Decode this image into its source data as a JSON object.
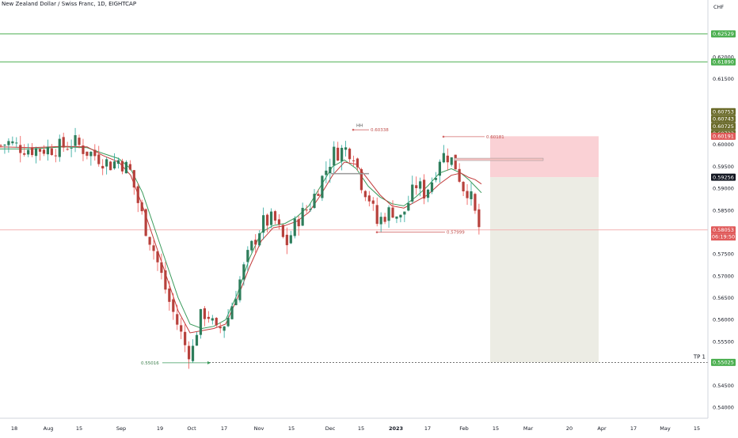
{
  "header": {
    "title": "New Zealand Dollar / Swiss Franc, 1D, EIGHTCAP"
  },
  "colors": {
    "up": "#26a69a",
    "down": "#ef5350",
    "body_up": "#2e7d5b",
    "body_down": "#b7413c",
    "ma_fast": "#c23b3b",
    "ma_slow": "#3a9a5b",
    "hline_green": "#4caf50",
    "stop_zone": "#f9c6cb",
    "target_zone": "#ecece4",
    "level_olive": "#6b6b2a",
    "last_price": "#d84a4a"
  },
  "chart_data": {
    "type": "candlestick",
    "title": "New Zealand Dollar / Swiss Franc, 1D, EIGHTCAP",
    "currency_label": "CHF",
    "ylim": [
      0.5375,
      0.6305
    ],
    "y_ticks": [
      "0.62000",
      "0.61500",
      "0.60500",
      "0.60000",
      "0.59500",
      "0.59000",
      "0.58500",
      "0.57500",
      "0.57000",
      "0.56500",
      "0.56000",
      "0.55500",
      "0.54500",
      "0.54000"
    ],
    "x_tick_labels": [
      "18",
      "Aug",
      "15",
      "Sep",
      "19",
      "Oct",
      "17",
      "Nov",
      "15",
      "Dec",
      "15",
      "2023",
      "17",
      "Feb",
      "15",
      "Mar",
      "20",
      "Apr",
      "17",
      "May",
      "15"
    ],
    "price_tags": [
      {
        "label": "0.62529",
        "value": 0.62529,
        "style": "green"
      },
      {
        "label": "0.61890",
        "value": 0.6189,
        "style": "green"
      },
      {
        "label": "0.60753",
        "value": 0.60753,
        "style": "olive"
      },
      {
        "label": "0.60743",
        "value": 0.60743,
        "style": "olive"
      },
      {
        "label": "0.60725",
        "value": 0.60725,
        "style": "olive"
      },
      {
        "label": "0.60723",
        "value": 0.60723,
        "style": "olive"
      },
      {
        "label": "0.60191",
        "value": 0.60191,
        "style": "red"
      },
      {
        "label": "0.59256",
        "value": 0.59256,
        "style": "dark"
      },
      {
        "label": "0.58053",
        "value": 0.58053,
        "style": "red"
      },
      {
        "label": "0.55025",
        "value": 0.55025,
        "style": "green"
      }
    ],
    "countdown": "06:19:50",
    "horizontal_lines": [
      0.62529,
      0.6189
    ],
    "annotations": [
      {
        "text": "HH",
        "value": 0.6044
      },
      {
        "text": "0.60338",
        "value": 0.60338
      },
      {
        "text": "0.60181",
        "value": 0.60181
      },
      {
        "text": "0.57999",
        "value": 0.57999
      },
      {
        "text": "0.55016",
        "value": 0.55016
      },
      {
        "text": "TP 1",
        "value": 0.55025
      }
    ],
    "position": {
      "entry": 0.59256,
      "stop": 0.60191,
      "target": 0.55025
    },
    "anchors": [
      [
        0,
        0.5998
      ],
      [
        10,
        0.6005
      ],
      [
        24,
        0.5995
      ],
      [
        39,
        0.599
      ],
      [
        59,
        0.599
      ],
      [
        79,
        0.5995
      ],
      [
        94,
        0.6005
      ],
      [
        109,
        0.5985
      ],
      [
        124,
        0.5972
      ],
      [
        139,
        0.5955
      ],
      [
        150,
        0.5965
      ],
      [
        164,
        0.594
      ],
      [
        174,
        0.587
      ],
      [
        184,
        0.581
      ],
      [
        194,
        0.576
      ],
      [
        204,
        0.57
      ],
      [
        214,
        0.564
      ],
      [
        224,
        0.559
      ],
      [
        234,
        0.554
      ],
      [
        242,
        0.552
      ],
      [
        251,
        0.56
      ],
      [
        261,
        0.562
      ],
      [
        273,
        0.557
      ],
      [
        287,
        0.56
      ],
      [
        301,
        0.568
      ],
      [
        316,
        0.576
      ],
      [
        331,
        0.582
      ],
      [
        346,
        0.583
      ],
      [
        361,
        0.577
      ],
      [
        376,
        0.583
      ],
      [
        391,
        0.586
      ],
      [
        406,
        0.592
      ],
      [
        421,
        0.598
      ],
      [
        436,
        0.599
      ],
      [
        446,
        0.5985
      ],
      [
        456,
        0.5915
      ],
      [
        466,
        0.588
      ],
      [
        476,
        0.582
      ],
      [
        486,
        0.584
      ],
      [
        496,
        0.585
      ],
      [
        506,
        0.583
      ],
      [
        516,
        0.587
      ],
      [
        526,
        0.591
      ],
      [
        536,
        0.589
      ],
      [
        546,
        0.592
      ],
      [
        556,
        0.5975
      ],
      [
        566,
        0.5975
      ],
      [
        576,
        0.595
      ],
      [
        584,
        0.5905
      ],
      [
        592,
        0.5895
      ],
      [
        600,
        0.584
      ],
      [
        606,
        0.5805
      ]
    ],
    "ma_fast": [
      [
        0,
        0.5995
      ],
      [
        40,
        0.5993
      ],
      [
        80,
        0.5996
      ],
      [
        110,
        0.5995
      ],
      [
        130,
        0.5975
      ],
      [
        150,
        0.596
      ],
      [
        165,
        0.593
      ],
      [
        180,
        0.586
      ],
      [
        195,
        0.578
      ],
      [
        210,
        0.57
      ],
      [
        225,
        0.562
      ],
      [
        240,
        0.557
      ],
      [
        255,
        0.5575
      ],
      [
        270,
        0.558
      ],
      [
        285,
        0.559
      ],
      [
        300,
        0.565
      ],
      [
        315,
        0.572
      ],
      [
        330,
        0.578
      ],
      [
        345,
        0.581
      ],
      [
        360,
        0.5815
      ],
      [
        375,
        0.5825
      ],
      [
        390,
        0.5845
      ],
      [
        405,
        0.5885
      ],
      [
        420,
        0.593
      ],
      [
        435,
        0.596
      ],
      [
        450,
        0.5955
      ],
      [
        465,
        0.592
      ],
      [
        480,
        0.5885
      ],
      [
        495,
        0.586
      ],
      [
        510,
        0.5855
      ],
      [
        525,
        0.587
      ],
      [
        540,
        0.5885
      ],
      [
        555,
        0.591
      ],
      [
        570,
        0.593
      ],
      [
        582,
        0.5935
      ],
      [
        592,
        0.5925
      ],
      [
        600,
        0.592
      ],
      [
        608,
        0.591
      ]
    ],
    "ma_slow": [
      [
        0,
        0.599
      ],
      [
        40,
        0.599
      ],
      [
        80,
        0.5995
      ],
      [
        110,
        0.5993
      ],
      [
        130,
        0.598
      ],
      [
        150,
        0.5968
      ],
      [
        165,
        0.5945
      ],
      [
        180,
        0.589
      ],
      [
        195,
        0.581
      ],
      [
        210,
        0.573
      ],
      [
        225,
        0.565
      ],
      [
        240,
        0.559
      ],
      [
        255,
        0.558
      ],
      [
        270,
        0.5585
      ],
      [
        285,
        0.56
      ],
      [
        300,
        0.566
      ],
      [
        315,
        0.574
      ],
      [
        330,
        0.58
      ],
      [
        345,
        0.5815
      ],
      [
        360,
        0.582
      ],
      [
        375,
        0.5835
      ],
      [
        390,
        0.586
      ],
      [
        405,
        0.5905
      ],
      [
        420,
        0.595
      ],
      [
        435,
        0.5965
      ],
      [
        450,
        0.5945
      ],
      [
        465,
        0.5905
      ],
      [
        480,
        0.588
      ],
      [
        495,
        0.5865
      ],
      [
        510,
        0.586
      ],
      [
        525,
        0.588
      ],
      [
        540,
        0.5905
      ],
      [
        555,
        0.5935
      ],
      [
        570,
        0.5945
      ],
      [
        582,
        0.5935
      ],
      [
        592,
        0.592
      ],
      [
        600,
        0.5905
      ],
      [
        608,
        0.589
      ]
    ]
  }
}
